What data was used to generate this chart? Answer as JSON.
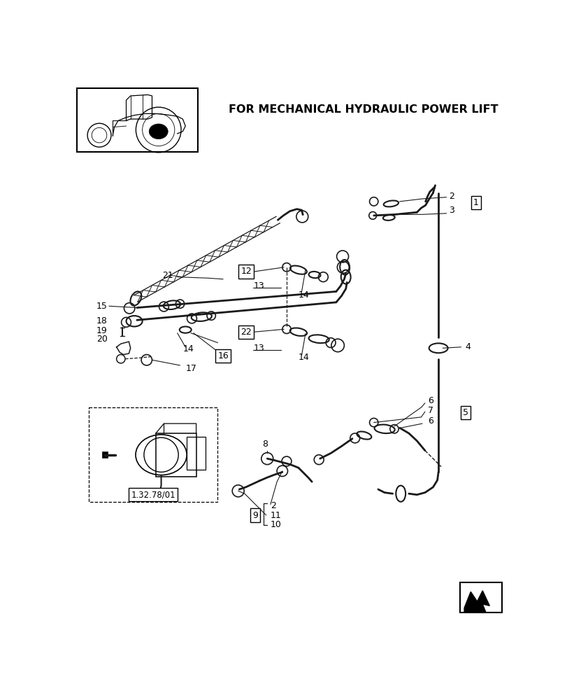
{
  "title": "FOR MECHANICAL HYDRAULIC POWER LIFT",
  "bg_color": "#ffffff",
  "lc": "#1a1a1a",
  "figsize": [
    8.12,
    10.0
  ],
  "dpi": 100,
  "ref_label": "1.32.78/01"
}
